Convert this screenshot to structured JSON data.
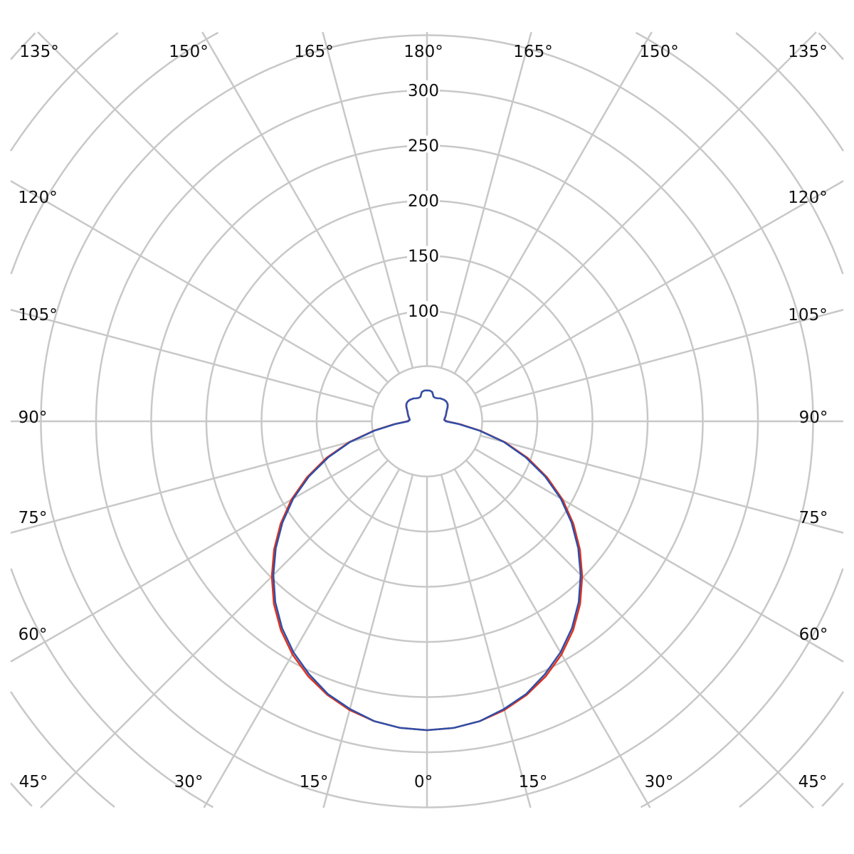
{
  "chart_data": {
    "type": "polar-line",
    "title": "",
    "radial_axis": {
      "ticks": [
        100,
        150,
        200,
        250,
        300
      ],
      "tick_labels": [
        "100",
        "150",
        "200",
        "250",
        "300"
      ],
      "ring_step": 50,
      "range": [
        0,
        350
      ]
    },
    "angular_axis": {
      "step_deg": 15,
      "labels": {
        "top": [
          "135°",
          "150°",
          "165°",
          "180°",
          "165°",
          "150°",
          "135°"
        ],
        "left": [
          "120°",
          "105°",
          "90°",
          "75°",
          "60°"
        ],
        "right": [
          "120°",
          "105°",
          "90°",
          "75°",
          "60°"
        ],
        "bottom": [
          "45°",
          "30°",
          "15°",
          "0°",
          "15°",
          "30°",
          "45°"
        ]
      },
      "zero_direction": "down"
    },
    "grid": true,
    "angles": [
      0,
      5,
      10,
      15,
      20,
      25,
      30,
      35,
      40,
      45,
      50,
      55,
      60,
      65,
      70,
      75,
      80,
      85,
      90,
      95,
      100,
      105,
      110,
      115,
      120,
      125,
      130,
      135,
      140,
      145,
      150,
      155,
      160,
      165,
      170,
      175,
      180
    ],
    "series": [
      {
        "color": "#e0321e",
        "values": [
          280,
          279,
          276,
          271,
          264,
          255,
          244,
          231,
          216,
          199,
          181,
          162,
          142,
          120,
          97,
          73,
          49,
          30,
          18,
          15.8,
          16.5,
          17.5,
          18.5,
          19.5,
          21,
          23,
          24.5,
          25,
          25,
          24.5,
          24,
          23,
          22.5,
          23,
          27,
          28,
          28
        ]
      },
      {
        "color": "#2f4fa8",
        "values": [
          280,
          279,
          276,
          270,
          263,
          253,
          242,
          229,
          214,
          197,
          179,
          160,
          140,
          118,
          95,
          72,
          48,
          29,
          17,
          15.6,
          16.3,
          17.3,
          18.3,
          19.3,
          20.8,
          22.8,
          24.3,
          25,
          25,
          24.5,
          24,
          23,
          22.5,
          23,
          27,
          28,
          28
        ]
      }
    ]
  }
}
